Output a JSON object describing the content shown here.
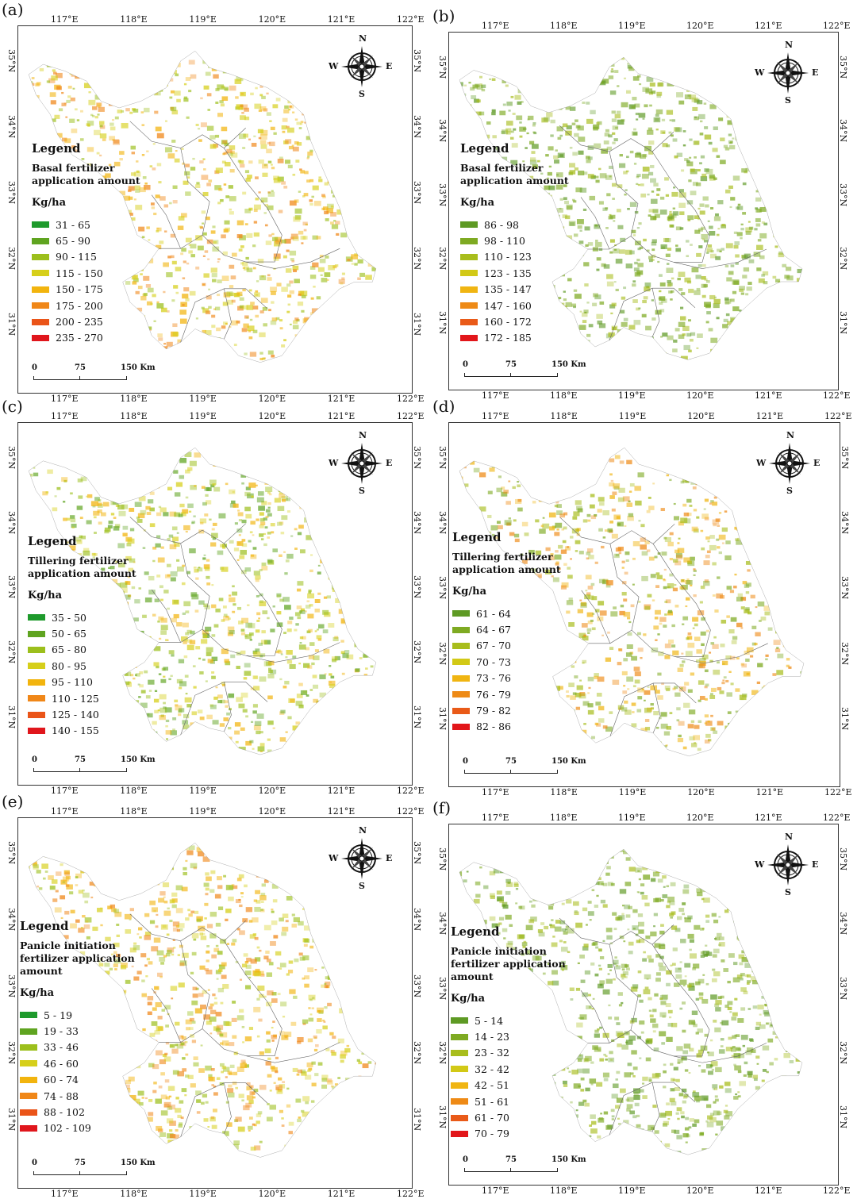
{
  "panels": [
    {
      "label": "(a)",
      "legend_title": "Legend",
      "subtitle": "Basal fertilizer application amount",
      "unit": "Kg/ha",
      "classes": [
        "31 - 65",
        "65 - 90",
        "90 - 115",
        "115 - 150",
        "150 - 175",
        "175 - 200",
        "200 - 235",
        "235 - 270"
      ],
      "colors": [
        "#1e9a2c",
        "#5fa420",
        "#9cbf1c",
        "#d6cf1a",
        "#f2b40e",
        "#f08718",
        "#ea5418",
        "#e0161c"
      ]
    },
    {
      "label": "(b)",
      "legend_title": "Legend",
      "subtitle": "Basal fertilizer application amount",
      "unit": "Kg/ha",
      "classes": [
        "86 - 98",
        "98 - 110",
        "110 - 123",
        "123 - 135",
        "135 - 147",
        "147 - 160",
        "160 - 172",
        "172 - 185"
      ],
      "colors": [
        "#5e9a24",
        "#7eaa22",
        "#a8bd1c",
        "#d2c916",
        "#f0b512",
        "#ee8a16",
        "#e95a18",
        "#e2161a"
      ]
    },
    {
      "label": "(c)",
      "legend_title": "Legend",
      "subtitle": "Tillering fertilizer application amount",
      "unit": "Kg/ha",
      "classes": [
        "35 - 50",
        "50 - 65",
        "65 - 80",
        "80 - 95",
        "95 - 110",
        "110 - 125",
        "125 - 140",
        "140 - 155"
      ],
      "colors": [
        "#1e9a2c",
        "#5fa420",
        "#9cbf1c",
        "#d6cf1a",
        "#f2b40e",
        "#f08718",
        "#ea5418",
        "#e0161c"
      ]
    },
    {
      "label": "(d)",
      "legend_title": "Legend",
      "subtitle": "Tillering fertilizer application amount",
      "unit": "Kg/ha",
      "classes": [
        "61 - 64",
        "64 - 67",
        "67 - 70",
        "70 - 73",
        "73 - 76",
        "76 - 79",
        "79 - 82",
        "82 - 86"
      ],
      "colors": [
        "#5e9a24",
        "#7eaa22",
        "#a8bd1c",
        "#d2c916",
        "#f0b512",
        "#ee8a16",
        "#e95a18",
        "#e2161a"
      ]
    },
    {
      "label": "(e)",
      "legend_title": "Legend",
      "subtitle": "Panicle initiation fertilizer application amount",
      "unit": "Kg/ha",
      "classes": [
        "5 - 19",
        "19 - 33",
        "33 - 46",
        "46 - 60",
        "60 - 74",
        "74 - 88",
        "88 - 102",
        "102 - 109"
      ],
      "colors": [
        "#1e9a2c",
        "#5fa420",
        "#9cbf1c",
        "#d6cf1a",
        "#f2b40e",
        "#f08718",
        "#ea5418",
        "#e0161c"
      ]
    },
    {
      "label": "(f)",
      "legend_title": "Legend",
      "subtitle": "Panicle initiation fertilizer application amount",
      "unit": "Kg/ha",
      "classes": [
        "5 - 14",
        "14 - 23",
        "23 - 32",
        "32 - 42",
        "42 - 51",
        "51 - 61",
        "61 - 70",
        "70 - 79"
      ],
      "colors": [
        "#5e9a24",
        "#7eaa22",
        "#a8bd1c",
        "#d2c916",
        "#f0b512",
        "#ee8a16",
        "#e95a18",
        "#e2161a"
      ]
    }
  ],
  "lon_ticks": [
    "117°E",
    "118°E",
    "119°E",
    "120°E",
    "121°E",
    "122°E"
  ],
  "lat_ticks": [
    "35°N",
    "34°N",
    "33°N",
    "32°N",
    "31°N"
  ],
  "compass": {
    "n": "N",
    "s": "S",
    "e": "E",
    "w": "W"
  },
  "scale": {
    "zero": "0",
    "mid": "75",
    "end": "150 Km"
  }
}
